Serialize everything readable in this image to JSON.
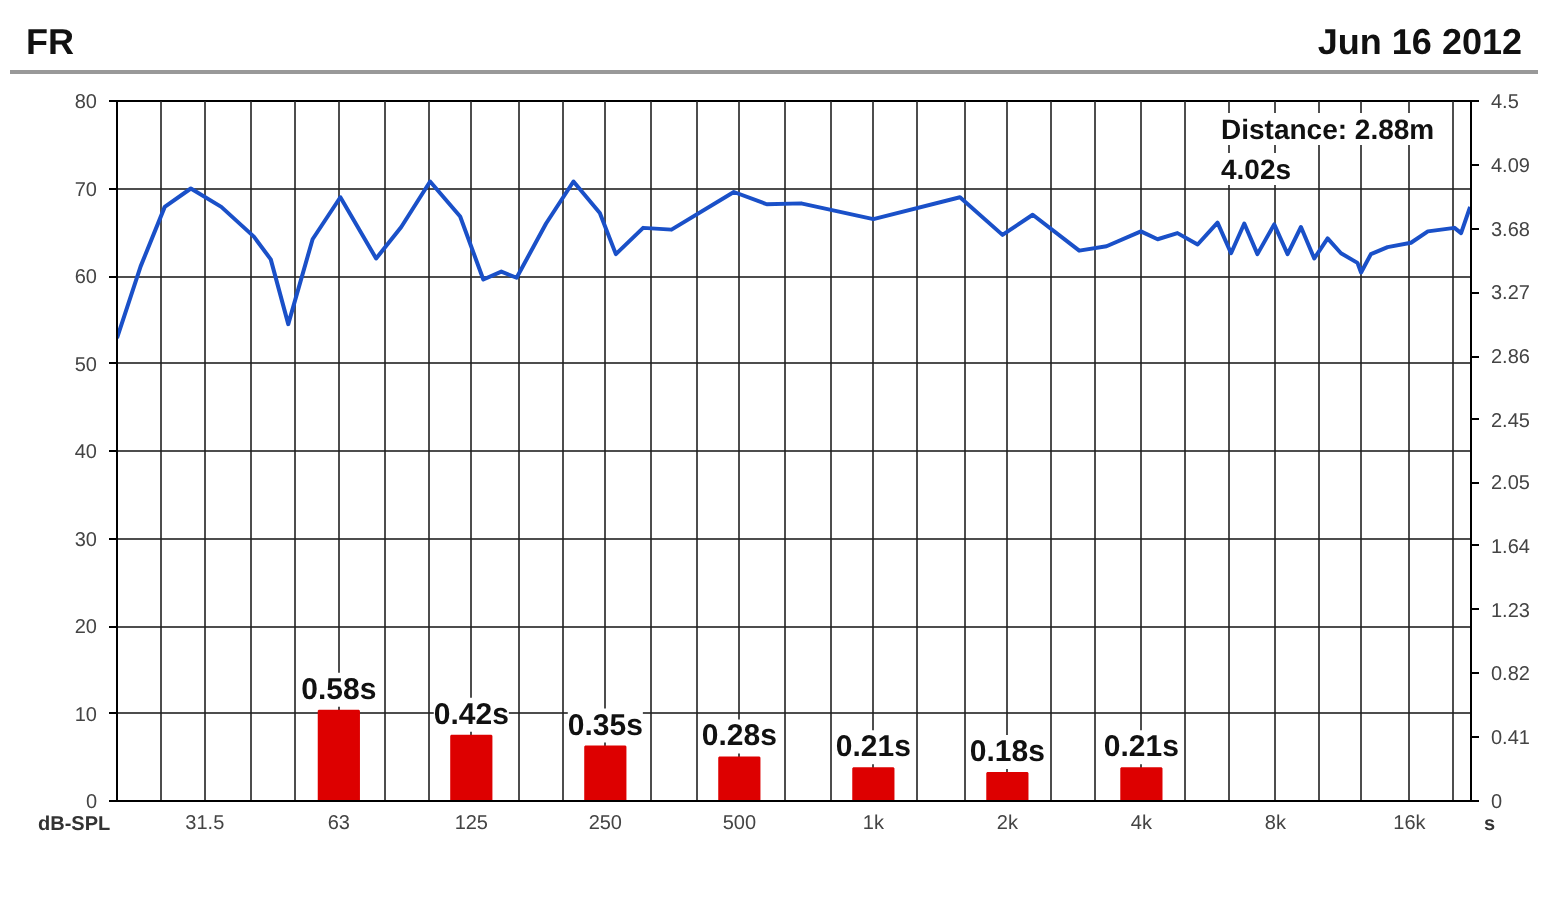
{
  "chart_data": {
    "type": "line",
    "title": "FR",
    "subtitle": "Jun 16 2012",
    "ylabel": "dB-SPL",
    "y2label": "s",
    "annotations": [
      "Distance: 2.88m",
      "4.02s"
    ],
    "xlim": [
      20,
      22000
    ],
    "log": "x",
    "xticks": [
      {
        "value": 25,
        "label": null
      },
      {
        "value": 31.5,
        "label": "31.5"
      },
      {
        "value": 40,
        "label": null
      },
      {
        "value": 50,
        "label": null
      },
      {
        "value": 63,
        "label": "63"
      },
      {
        "value": 80,
        "label": null
      },
      {
        "value": 100,
        "label": null
      },
      {
        "value": 125,
        "label": "125"
      },
      {
        "value": 160,
        "label": null
      },
      {
        "value": 200,
        "label": null
      },
      {
        "value": 250,
        "label": "250"
      },
      {
        "value": 315,
        "label": null
      },
      {
        "value": 400,
        "label": null
      },
      {
        "value": 500,
        "label": "500"
      },
      {
        "value": 630,
        "label": null
      },
      {
        "value": 800,
        "label": null
      },
      {
        "value": 1000,
        "label": "1k"
      },
      {
        "value": 1250,
        "label": null
      },
      {
        "value": 1600,
        "label": null
      },
      {
        "value": 2000,
        "label": "2k"
      },
      {
        "value": 2500,
        "label": null
      },
      {
        "value": 3150,
        "label": null
      },
      {
        "value": 4000,
        "label": "4k"
      },
      {
        "value": 5000,
        "label": null
      },
      {
        "value": 6300,
        "label": null
      },
      {
        "value": 8000,
        "label": "8k"
      },
      {
        "value": 10000,
        "label": null
      },
      {
        "value": 12500,
        "label": null
      },
      {
        "value": 16000,
        "label": "16k"
      },
      {
        "value": 20000,
        "label": null
      }
    ],
    "ylim": [
      0,
      80
    ],
    "yticks": [
      0,
      10,
      20,
      30,
      40,
      50,
      60,
      70,
      80
    ],
    "y2lim": [
      0,
      4.5
    ],
    "y2ticks": [
      0,
      0.41,
      0.82,
      1.23,
      1.64,
      2.05,
      2.45,
      2.86,
      3.27,
      3.68,
      4.09,
      4.5
    ],
    "grid": true,
    "marker": "none",
    "line_style": "solid",
    "series": [
      {
        "color": "#1a50c8",
        "x": [
          20,
          22.6,
          25.6,
          29.3,
          34.3,
          40.6,
          44.3,
          48.5,
          55,
          63.5,
          76.4,
          87,
          101,
          118,
          133,
          146,
          158,
          184,
          212,
          243,
          264,
          304,
          352,
          486,
          576,
          688,
          1000,
          1565,
          1950,
          2280,
          2900,
          3340,
          3990,
          4350,
          4820,
          5350,
          5930,
          6360,
          6810,
          7290,
          7950,
          8520,
          9130,
          9780,
          10480,
          11230,
          12230,
          12460,
          13110,
          14290,
          16130,
          17600,
          20200,
          20900,
          21900
        ],
        "values": [
          52.9,
          61.1,
          67.9,
          70.0,
          67.9,
          64.5,
          61.9,
          54.5,
          64.2,
          69.0,
          62.0,
          65.6,
          70.8,
          66.8,
          59.6,
          60.5,
          59.8,
          66.0,
          70.8,
          67.2,
          62.5,
          65.5,
          65.3,
          69.6,
          68.2,
          68.3,
          66.5,
          69.0,
          64.7,
          67.0,
          62.9,
          63.4,
          65.1,
          64.2,
          64.9,
          63.6,
          66.1,
          62.6,
          66.0,
          62.5,
          65.9,
          62.5,
          65.6,
          62.0,
          64.3,
          62.6,
          61.5,
          60.4,
          62.5,
          63.3,
          63.8,
          65.1,
          65.5,
          64.9,
          67.9
        ]
      },
      {
        "type": "bar",
        "axis": "y2",
        "color": "#dd0000",
        "x": [
          63,
          125,
          250,
          500,
          1000,
          2000,
          4000
        ],
        "values": [
          0.58,
          0.42,
          0.35,
          0.28,
          0.21,
          0.18,
          0.21
        ],
        "value_labels": [
          "0.58s",
          "0.42s",
          "0.35s",
          "0.28s",
          "0.21s",
          "0.18s",
          "0.21s"
        ]
      }
    ]
  }
}
